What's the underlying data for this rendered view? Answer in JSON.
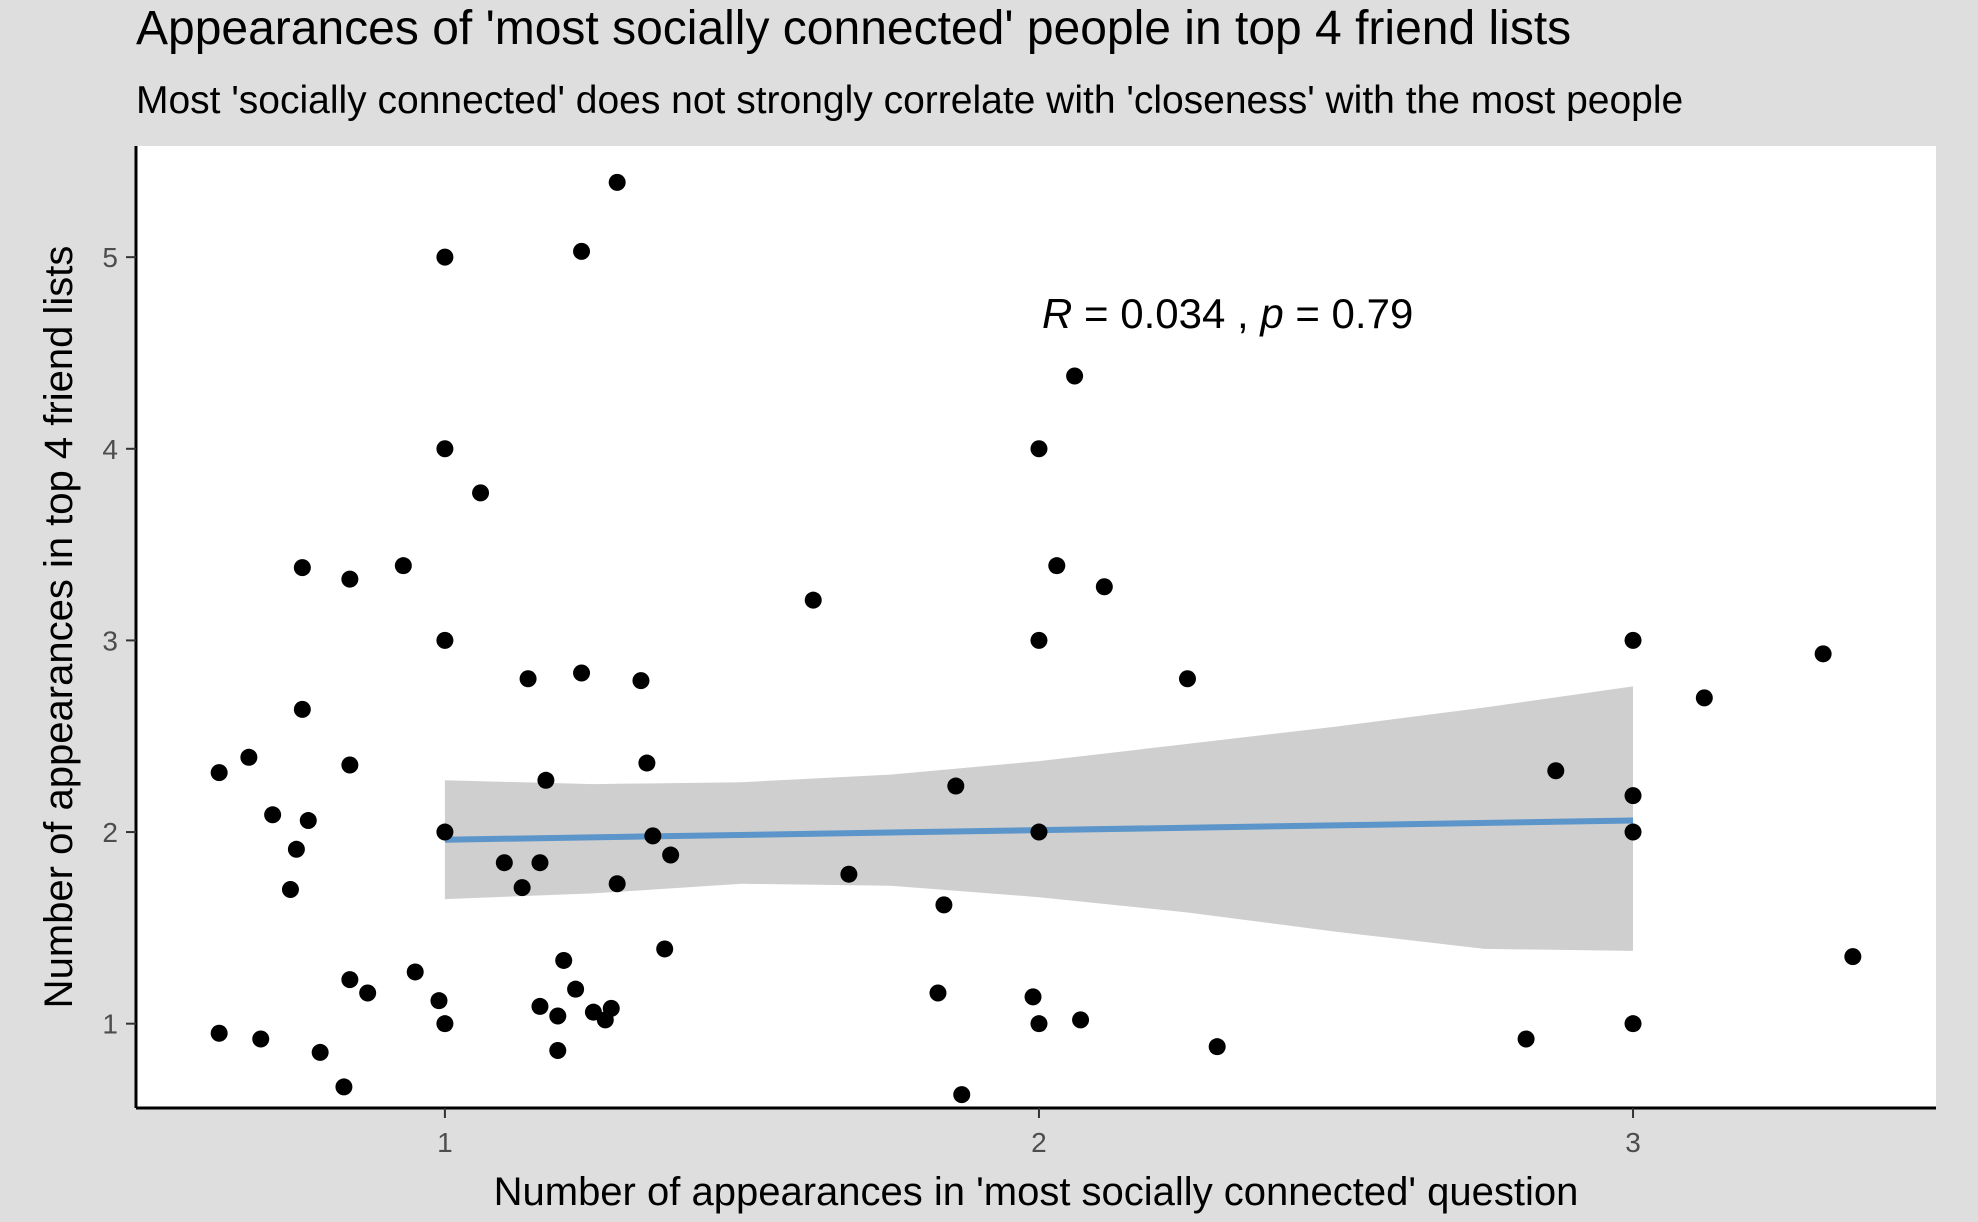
{
  "chart_data": {
    "type": "scatter",
    "title": "Appearances of 'most socially connected' people in top 4 friend lists",
    "subtitle": "Most 'socially connected' does not strongly correlate with 'closeness' with the most people",
    "xlabel": "Number of appearances in 'most socially connected' question",
    "ylabel": "Number of appearances in top 4 friend lists",
    "xlim": [
      0.48,
      3.51
    ],
    "ylim": [
      0.56,
      5.58
    ],
    "xticks": [
      1,
      2,
      3
    ],
    "yticks": [
      1,
      2,
      3,
      4,
      5
    ],
    "grid": false,
    "annotation": {
      "r_symbol": "R",
      "r_text": " = 0.034 , ",
      "p_symbol": "p",
      "p_text": " = 0.79"
    },
    "colors": {
      "background": "#dedede",
      "panel": "#ffffff",
      "points": "#000000",
      "fit_line": "#5b95c9",
      "ci_band": "#cfcfcf"
    },
    "points": [
      [
        0.62,
        0.95
      ],
      [
        0.69,
        0.92
      ],
      [
        0.79,
        0.85
      ],
      [
        0.83,
        0.67
      ],
      [
        0.84,
        1.23
      ],
      [
        0.87,
        1.16
      ],
      [
        0.62,
        2.31
      ],
      [
        0.67,
        2.39
      ],
      [
        0.71,
        2.09
      ],
      [
        0.74,
        1.7
      ],
      [
        0.75,
        1.91
      ],
      [
        0.76,
        2.64
      ],
      [
        0.76,
        3.38
      ],
      [
        0.77,
        2.06
      ],
      [
        0.84,
        3.32
      ],
      [
        0.84,
        2.35
      ],
      [
        0.93,
        3.39
      ],
      [
        0.95,
        1.27
      ],
      [
        0.99,
        1.12
      ],
      [
        1.0,
        1.0
      ],
      [
        1.0,
        2.0
      ],
      [
        1.0,
        3.0
      ],
      [
        1.0,
        4.0
      ],
      [
        1.0,
        5.0
      ],
      [
        1.06,
        3.77
      ],
      [
        1.1,
        1.84
      ],
      [
        1.13,
        1.71
      ],
      [
        1.14,
        2.8
      ],
      [
        1.16,
        1.09
      ],
      [
        1.16,
        1.84
      ],
      [
        1.17,
        2.27
      ],
      [
        1.19,
        1.04
      ],
      [
        1.19,
        0.86
      ],
      [
        1.2,
        1.33
      ],
      [
        1.22,
        1.18
      ],
      [
        1.23,
        2.83
      ],
      [
        1.23,
        5.03
      ],
      [
        1.25,
        1.06
      ],
      [
        1.27,
        1.02
      ],
      [
        1.28,
        1.08
      ],
      [
        1.29,
        1.73
      ],
      [
        1.29,
        5.39
      ],
      [
        1.33,
        2.79
      ],
      [
        1.34,
        2.36
      ],
      [
        1.35,
        1.98
      ],
      [
        1.37,
        1.39
      ],
      [
        1.38,
        1.88
      ],
      [
        1.62,
        3.21
      ],
      [
        1.68,
        1.78
      ],
      [
        1.83,
        1.16
      ],
      [
        1.84,
        1.62
      ],
      [
        1.86,
        2.24
      ],
      [
        1.87,
        0.63
      ],
      [
        1.99,
        1.14
      ],
      [
        2.0,
        1.0
      ],
      [
        2.0,
        2.0
      ],
      [
        2.0,
        3.0
      ],
      [
        2.0,
        4.0
      ],
      [
        2.03,
        3.39
      ],
      [
        2.06,
        4.38
      ],
      [
        2.07,
        1.02
      ],
      [
        2.11,
        3.28
      ],
      [
        2.25,
        2.8
      ],
      [
        2.3,
        0.88
      ],
      [
        2.82,
        0.92
      ],
      [
        2.87,
        2.32
      ],
      [
        3.0,
        1.0
      ],
      [
        3.0,
        2.0
      ],
      [
        3.0,
        2.19
      ],
      [
        3.0,
        3.0
      ],
      [
        3.12,
        2.7
      ],
      [
        3.32,
        2.93
      ],
      [
        3.37,
        1.35
      ]
    ],
    "fit": {
      "line": [
        [
          1.0,
          1.96
        ],
        [
          3.0,
          2.06
        ]
      ],
      "ci_upper": [
        [
          1.0,
          2.27
        ],
        [
          1.25,
          2.25
        ],
        [
          1.5,
          2.26
        ],
        [
          1.75,
          2.3
        ],
        [
          2.0,
          2.37
        ],
        [
          2.25,
          2.46
        ],
        [
          2.5,
          2.55
        ],
        [
          2.75,
          2.65
        ],
        [
          3.0,
          2.76
        ]
      ],
      "ci_lower": [
        [
          1.0,
          1.65
        ],
        [
          1.25,
          1.68
        ],
        [
          1.5,
          1.73
        ],
        [
          1.75,
          1.72
        ],
        [
          2.0,
          1.66
        ],
        [
          2.25,
          1.58
        ],
        [
          2.5,
          1.48
        ],
        [
          2.75,
          1.39
        ],
        [
          3.0,
          1.38
        ]
      ]
    }
  }
}
